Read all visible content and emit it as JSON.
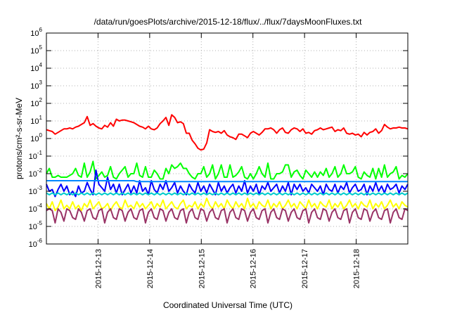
{
  "chart_data": {
    "type": "line",
    "title": "/data/run/goesPlots/archive/2015-12-18/flux/../flux/7daysMoonFluxes.txt",
    "xlabel": "Coordinated Universal Time (UTC)",
    "ylabel": "protons/cm²-s-sr-MeV",
    "yscale": "log",
    "ylim_exponents": [
      -6,
      6
    ],
    "y_ticks": [
      {
        "base": "10",
        "exp": "-6"
      },
      {
        "base": "10",
        "exp": "-5"
      },
      {
        "base": "10",
        "exp": "-4"
      },
      {
        "base": "10",
        "exp": "-3"
      },
      {
        "base": "10",
        "exp": "-2"
      },
      {
        "base": "10",
        "exp": "-1"
      },
      {
        "base": "10",
        "exp": "0"
      },
      {
        "base": "10",
        "exp": "1"
      },
      {
        "base": "10",
        "exp": "2"
      },
      {
        "base": "10",
        "exp": "3"
      },
      {
        "base": "10",
        "exp": "4"
      },
      {
        "base": "10",
        "exp": "5"
      },
      {
        "base": "10",
        "exp": "6"
      }
    ],
    "x_range_days": [
      0,
      7
    ],
    "x_ticks": [
      {
        "day": 1,
        "label": "2015-12-13"
      },
      {
        "day": 2,
        "label": "2015-12-14"
      },
      {
        "day": 3,
        "label": "2015-12-15"
      },
      {
        "day": 4,
        "label": "2015-12-16"
      },
      {
        "day": 5,
        "label": "2015-12-17"
      },
      {
        "day": 6,
        "label": "2015-12-18"
      }
    ],
    "grid": true,
    "series": [
      {
        "color": "#ff0000",
        "log10_values": [
          0.5,
          0.45,
          0.4,
          0.25,
          0.35,
          0.45,
          0.55,
          0.55,
          0.6,
          0.55,
          0.65,
          0.7,
          0.8,
          0.9,
          1.25,
          0.75,
          0.85,
          0.7,
          0.6,
          0.55,
          0.75,
          0.65,
          0.9,
          0.7,
          1.1,
          1.0,
          1.05,
          1.05,
          1.0,
          0.95,
          0.9,
          0.8,
          0.7,
          0.65,
          0.55,
          0.7,
          0.55,
          0.5,
          0.6,
          0.85,
          1.0,
          1.2,
          0.75,
          1.35,
          1.2,
          0.9,
          0.95,
          0.85,
          0.3,
          0.3,
          -0.1,
          -0.3,
          -0.55,
          -0.65,
          -0.6,
          -0.25,
          0.5,
          0.4,
          0.35,
          0.4,
          0.3,
          0.45,
          0.2,
          0.1,
          0.05,
          -0.05,
          0.25,
          0.25,
          0.15,
          0.05,
          0.3,
          0.4,
          0.3,
          0.2,
          0.35,
          0.55,
          0.55,
          0.6,
          0.5,
          0.3,
          0.5,
          0.6,
          0.35,
          0.3,
          0.5,
          0.6,
          0.55,
          0.4,
          0.55,
          0.3,
          0.35,
          0.25,
          0.45,
          0.5,
          0.6,
          0.5,
          0.55,
          0.6,
          0.65,
          0.4,
          0.5,
          0.45,
          0.6,
          0.3,
          0.25,
          0.3,
          0.2,
          0.25,
          0.1,
          0.35,
          0.2,
          0.35,
          0.4,
          0.55,
          0.3,
          0.45,
          0.8,
          0.65,
          0.55,
          0.6,
          0.6,
          0.65,
          0.6,
          0.6,
          0.55
        ]
      },
      {
        "color": "#00ff00",
        "log10_values": [
          -2.0,
          -1.7,
          -2.2,
          -2.2,
          -2.1,
          -2.2,
          -2.2,
          -2.2,
          -2.1,
          -2.0,
          -1.7,
          -2.1,
          -2.2,
          -1.4,
          -2.2,
          -1.9,
          -1.3,
          -2.3,
          -2.1,
          -1.9,
          -2.2,
          -2.1,
          -1.6,
          -2.2,
          -2.3,
          -2.0,
          -1.8,
          -1.6,
          -2.2,
          -2.0,
          -2.0,
          -1.4,
          -2.1,
          -2.2,
          -1.6,
          -2.2,
          -2.2,
          -1.8,
          -2.0,
          -2.3,
          -2.3,
          -1.7,
          -2.0,
          -1.5,
          -1.7,
          -1.6,
          -1.4,
          -1.7,
          -1.7,
          -2.0,
          -2.2,
          -2.3,
          -2.0,
          -2.0,
          -1.6,
          -2.2,
          -2.0,
          -1.5,
          -2.3,
          -2.0,
          -1.5,
          -2.2,
          -2.2,
          -1.5,
          -2.2,
          -2.1,
          -1.9,
          -1.6,
          -2.2,
          -2.3,
          -2.0,
          -2.3,
          -2.0,
          -1.6,
          -2.0,
          -2.2,
          -1.4,
          -2.3,
          -2.3,
          -2.0,
          -2.0,
          -1.9,
          -1.5,
          -1.5,
          -2.2,
          -1.9,
          -1.8,
          -2.1,
          -2.3,
          -1.8,
          -2.0,
          -2.2,
          -1.9,
          -2.2,
          -1.9,
          -2.1,
          -1.7,
          -2.2,
          -2.0,
          -1.6,
          -2.2,
          -2.0,
          -1.5,
          -2.0,
          -2.0,
          -1.9,
          -1.6,
          -2.2,
          -2.3,
          -1.9,
          -2.1,
          -2.2,
          -1.7,
          -2.3,
          -1.7,
          -2.2,
          -1.5,
          -2.2,
          -2.0,
          -1.9,
          -1.6,
          -2.3,
          -2.1,
          -2.2,
          -2.0
        ]
      },
      {
        "color": "#0000ff",
        "log10_values": [
          -2.6,
          -3.0,
          -2.9,
          -3.3,
          -2.9,
          -2.6,
          -3.0,
          -2.7,
          -3.2,
          -3.0,
          -3.3,
          -2.7,
          -3.1,
          -3.0,
          -2.5,
          -2.9,
          -3.2,
          -1.8,
          -2.6,
          -2.8,
          -3.0,
          -2.2,
          -2.9,
          -2.6,
          -3.1,
          -2.6,
          -3.2,
          -2.9,
          -2.6,
          -3.1,
          -2.7,
          -3.1,
          -2.4,
          -3.0,
          -2.8,
          -3.2,
          -2.4,
          -2.9,
          -3.1,
          -2.6,
          -2.9,
          -2.4,
          -3.0,
          -2.8,
          -2.5,
          -3.1,
          -2.7,
          -3.0,
          -3.2,
          -2.6,
          -2.9,
          -3.1,
          -2.5,
          -3.0,
          -2.7,
          -3.1,
          -2.6,
          -2.9,
          -3.2,
          -2.5,
          -3.0,
          -2.7,
          -3.1,
          -2.8,
          -2.6,
          -3.1,
          -2.7,
          -3.0,
          -2.4,
          -3.1,
          -2.7,
          -3.0,
          -2.6,
          -3.2,
          -2.7,
          -2.9,
          -2.5,
          -3.0,
          -2.8,
          -2.6,
          -3.1,
          -2.7,
          -3.0,
          -2.5,
          -3.2,
          -2.6,
          -2.9,
          -2.6,
          -3.0,
          -2.8,
          -3.1,
          -2.6,
          -2.8,
          -3.0,
          -2.7,
          -3.2,
          -2.6,
          -2.9,
          -3.0,
          -2.6,
          -3.1,
          -2.7,
          -2.9,
          -2.5,
          -3.1,
          -2.8,
          -2.6,
          -3.0,
          -2.9,
          -2.6,
          -3.2,
          -2.7,
          -3.0,
          -2.5,
          -3.0,
          -2.7,
          -3.1,
          -2.6,
          -2.9,
          -2.8,
          -2.6,
          -3.1,
          -2.7,
          -2.9,
          -2.6
        ]
      },
      {
        "color": "#0088ff",
        "log10_values": [
          -2.4,
          -2.4,
          -2.4,
          -2.4,
          -2.4,
          -2.4,
          -2.4,
          -2.4,
          -2.4,
          -2.4,
          -2.4,
          -2.4,
          -2.4,
          -2.4,
          -2.4,
          -2.4,
          -2.4,
          -2.4,
          -2.4,
          -2.4,
          -2.4,
          -2.4,
          -2.4,
          -2.4,
          -2.4,
          -2.4,
          -2.4,
          -2.4,
          -2.4,
          -2.4,
          -2.4,
          -2.45,
          -2.45,
          -2.45,
          -2.45,
          -2.45,
          -2.45,
          -2.45,
          -2.45,
          -2.45,
          -2.45,
          -2.45,
          -2.45,
          -2.45,
          -2.45,
          -2.45,
          -2.45,
          -2.45,
          -2.45,
          -2.45,
          -2.45,
          -2.45,
          -2.45,
          -2.45,
          -2.45,
          -2.45,
          -2.45,
          -2.45,
          -2.45,
          -2.45,
          -2.45,
          -2.45,
          -2.45,
          -2.45,
          -2.45,
          -2.45,
          -2.45,
          -2.45,
          -2.45,
          -2.45,
          -2.45,
          -2.45,
          -2.45,
          -2.45,
          -2.45,
          -2.45,
          -2.45,
          -2.45,
          -2.45,
          -2.45,
          -2.45,
          -2.45,
          -2.45,
          -2.45,
          -2.45,
          -2.45,
          -2.45,
          -2.45,
          -2.45,
          -2.45,
          -2.45,
          -2.45,
          -2.45,
          -2.45,
          -2.45,
          -2.45,
          -2.45,
          -2.45,
          -2.45,
          -2.45,
          -2.45,
          -2.45,
          -2.45,
          -2.45,
          -2.45,
          -2.45,
          -2.45,
          -2.45,
          -2.45,
          -2.45,
          -2.45,
          -2.45,
          -2.45,
          -2.45,
          -2.45,
          -2.45,
          -2.45,
          -2.45,
          -2.45,
          -2.45,
          -2.45,
          -2.45,
          -2.45,
          -2.45,
          -2.45
        ]
      },
      {
        "color": "#00cccc",
        "log10_values": [
          -3.1,
          -3.2,
          -3.1,
          -3.2,
          -3.1,
          -3.2,
          -3.1,
          -3.2,
          -3.1,
          -3.2,
          -3.1,
          -3.2,
          -3.1,
          -3.2,
          -3.1,
          -3.2,
          -3.1,
          -3.2,
          -3.1,
          -3.2,
          -3.1,
          -3.2,
          -3.1,
          -3.2,
          -3.1,
          -3.2,
          -3.1,
          -3.2,
          -3.1,
          -3.2,
          -3.1,
          -3.2,
          -3.1,
          -3.2,
          -3.1,
          -3.2,
          -3.1,
          -3.2,
          -3.1,
          -3.2,
          -3.1,
          -3.2,
          -3.1,
          -3.2,
          -3.1,
          -3.2,
          -3.1,
          -3.2,
          -3.1,
          -3.2,
          -3.1,
          -3.2,
          -3.1,
          -3.2,
          -3.1,
          -3.2,
          -3.1,
          -3.2,
          -3.1,
          -3.2,
          -3.1,
          -3.2,
          -3.1,
          -3.2,
          -3.1,
          -3.2,
          -3.1,
          -3.2,
          -3.1,
          -3.2,
          -3.1,
          -3.2,
          -3.1,
          -3.2,
          -3.1,
          -3.2,
          -3.1,
          -3.2,
          -3.1,
          -3.2,
          -3.1,
          -3.2,
          -3.1,
          -3.2,
          -3.1,
          -3.2,
          -3.1,
          -3.2,
          -3.1,
          -3.2,
          -3.1,
          -3.2,
          -3.1,
          -3.2,
          -3.1,
          -3.2,
          -3.1,
          -3.2,
          -3.1,
          -3.2,
          -3.1,
          -3.2,
          -3.1,
          -3.2,
          -3.1,
          -3.2,
          -3.1,
          -3.2,
          -3.1,
          -3.2,
          -3.1,
          -3.2,
          -3.1,
          -3.2,
          -3.1,
          -3.2,
          -3.1,
          -3.2,
          -3.1,
          -3.2,
          -3.1,
          -3.2,
          -3.1,
          -3.2,
          -3.1
        ]
      },
      {
        "color": "#ffff00",
        "log10_values": [
          -3.7,
          -4.0,
          -3.6,
          -4.1,
          -3.9,
          -3.5,
          -4.0,
          -3.8,
          -4.0,
          -3.6,
          -4.0,
          -3.8,
          -4.1,
          -3.7,
          -3.9,
          -3.5,
          -4.0,
          -3.8,
          -3.6,
          -4.0,
          -3.9,
          -3.7,
          -4.1,
          -3.8,
          -3.6,
          -3.9,
          -4.0,
          -3.5,
          -3.9,
          -3.8,
          -4.0,
          -3.6,
          -3.9,
          -3.7,
          -4.0,
          -3.8,
          -3.6,
          -4.0,
          -3.7,
          -3.9,
          -3.5,
          -4.0,
          -3.8,
          -3.6,
          -3.9,
          -4.0,
          -3.7,
          -3.5,
          -4.0,
          -3.8,
          -3.9,
          -3.6,
          -4.0,
          -3.7,
          -3.9,
          -3.4,
          -3.8,
          -4.0,
          -3.6,
          -3.9,
          -3.7,
          -4.0,
          -3.5,
          -3.8,
          -4.0,
          -3.6,
          -3.9,
          -3.7,
          -4.0,
          -3.4,
          -3.9,
          -3.7,
          -4.0,
          -3.6,
          -3.8,
          -3.9,
          -3.5,
          -4.0,
          -3.7,
          -3.9,
          -3.6,
          -4.0,
          -3.8,
          -3.5,
          -3.9,
          -3.7,
          -4.0,
          -3.6,
          -3.8,
          -4.0,
          -3.5,
          -3.9,
          -3.7,
          -4.0,
          -3.6,
          -3.8,
          -3.9,
          -3.5,
          -4.0,
          -3.7,
          -3.9,
          -3.6,
          -4.0,
          -3.8,
          -3.5,
          -3.9,
          -3.7,
          -4.0,
          -3.6,
          -3.8,
          -3.9,
          -3.5,
          -4.0,
          -3.7,
          -3.9,
          -3.6,
          -4.0,
          -3.8,
          -3.5,
          -3.9,
          -3.7,
          -4.0,
          -3.6,
          -3.8,
          -3.9
        ]
      },
      {
        "color": "#993366",
        "log10_values": [
          -4.1,
          -4.0,
          -4.1,
          -4.8,
          -4.0,
          -4.2,
          -4.7,
          -4.0,
          -4.1,
          -4.5,
          -4.6,
          -4.0,
          -4.2,
          -4.7,
          -4.1,
          -4.0,
          -4.5,
          -4.6,
          -4.1,
          -4.0,
          -4.8,
          -4.2,
          -4.0,
          -4.5,
          -4.6,
          -4.0,
          -4.1,
          -4.7,
          -4.2,
          -4.0,
          -4.5,
          -4.6,
          -4.1,
          -4.0,
          -4.8,
          -4.2,
          -4.0,
          -4.5,
          -4.6,
          -4.0,
          -4.1,
          -4.7,
          -4.2,
          -4.0,
          -4.5,
          -4.6,
          -4.1,
          -4.0,
          -4.8,
          -4.2,
          -4.0,
          -4.5,
          -4.6,
          -4.0,
          -4.1,
          -4.7,
          -4.2,
          -4.0,
          -4.5,
          -4.6,
          -4.1,
          -4.0,
          -4.8,
          -4.2,
          -4.0,
          -4.5,
          -4.6,
          -4.0,
          -4.1,
          -4.7,
          -4.2,
          -4.0,
          -4.5,
          -4.6,
          -4.1,
          -4.0,
          -4.8,
          -4.2,
          -4.0,
          -4.5,
          -4.6,
          -4.0,
          -4.1,
          -4.7,
          -4.2,
          -4.0,
          -4.5,
          -4.6,
          -4.1,
          -4.0,
          -4.8,
          -4.2,
          -4.0,
          -4.5,
          -4.6,
          -4.0,
          -4.1,
          -4.7,
          -4.2,
          -4.0,
          -4.5,
          -4.6,
          -4.1,
          -4.0,
          -4.8,
          -4.2,
          -4.0,
          -4.5,
          -4.6,
          -4.0,
          -4.1,
          -4.7,
          -4.2,
          -4.0,
          -4.5,
          -4.6,
          -4.1,
          -4.0,
          -4.8,
          -4.2,
          -4.0,
          -4.5,
          -4.6,
          -4.0,
          -4.1
        ]
      }
    ]
  }
}
